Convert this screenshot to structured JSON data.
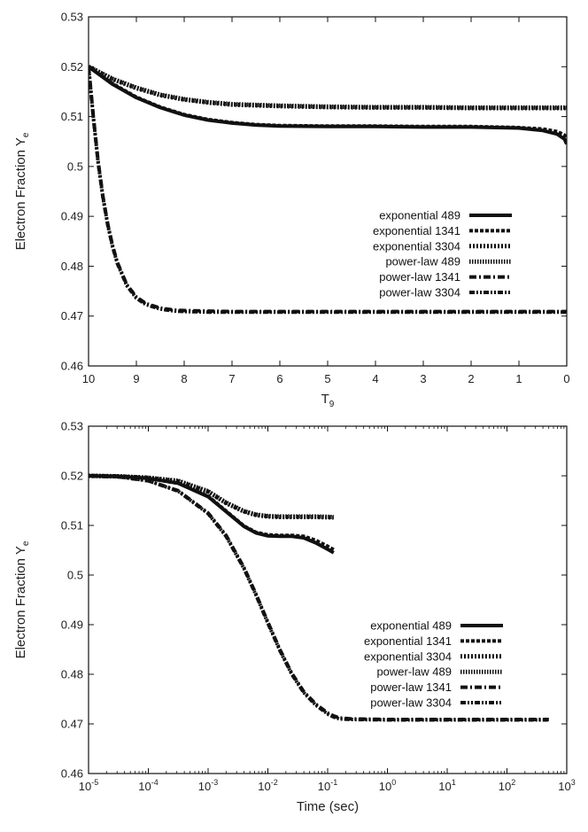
{
  "chart_data": [
    {
      "type": "line",
      "xlabel": "T",
      "xlabel_sub": "9",
      "ylabel": "Electron Fraction Y",
      "ylabel_sub": "e",
      "xlim": [
        10,
        0
      ],
      "ylim": [
        0.46,
        0.53
      ],
      "x_reversed": true,
      "x_scale": "linear",
      "xticks": [
        10,
        9,
        8,
        7,
        6,
        5,
        4,
        3,
        2,
        1,
        0
      ],
      "xtick_labels": [
        "10",
        "9",
        "8",
        "7",
        "6",
        "5",
        "4",
        "3",
        "2",
        "1",
        "0"
      ],
      "yticks": [
        0.46,
        0.47,
        0.48,
        0.49,
        0.5,
        0.51,
        0.52,
        0.53
      ],
      "ytick_labels": [
        "0.46",
        "0.47",
        "0.48",
        "0.49",
        "0.5",
        "0.51",
        "0.52",
        "0.53"
      ],
      "grid": false,
      "legend_position": "center-right",
      "series": [
        {
          "name": "exponential  489",
          "style": "solid",
          "x": [
            10,
            9.5,
            9,
            8.5,
            8,
            7.5,
            7,
            6.5,
            6,
            5,
            4,
            3,
            2,
            1,
            0.5,
            0.2,
            0.05,
            0
          ],
          "y": [
            0.52,
            0.5165,
            0.5138,
            0.5118,
            0.5103,
            0.5093,
            0.5087,
            0.5083,
            0.5081,
            0.508,
            0.508,
            0.5079,
            0.5079,
            0.5077,
            0.5072,
            0.5065,
            0.5055,
            0.5045
          ]
        },
        {
          "name": "exponential 1341",
          "style": "dashed",
          "x": [
            10,
            9.5,
            9,
            8.5,
            8,
            7.5,
            7,
            6.5,
            6,
            5,
            4,
            3,
            2,
            1,
            0.5,
            0.2,
            0.05,
            0
          ],
          "y": [
            0.52,
            0.5166,
            0.5139,
            0.5119,
            0.5104,
            0.5094,
            0.5088,
            0.5084,
            0.5082,
            0.5081,
            0.5081,
            0.508,
            0.508,
            0.5078,
            0.5075,
            0.507,
            0.5063,
            0.5057
          ]
        },
        {
          "name": "exponential 3304",
          "style": "dotted",
          "x": [
            10,
            9.5,
            9,
            8.5,
            8,
            7.5,
            7,
            6,
            5,
            4,
            3,
            2,
            1,
            0
          ],
          "y": [
            0.52,
            0.5175,
            0.5157,
            0.5143,
            0.5134,
            0.5128,
            0.5124,
            0.5121,
            0.5119,
            0.5118,
            0.5118,
            0.5117,
            0.5117,
            0.5117
          ]
        },
        {
          "name": "power-law    489",
          "style": "dotted-fine",
          "x": [
            10,
            9.5,
            9,
            8.5,
            8,
            7.5,
            7,
            6,
            5,
            4,
            3,
            2,
            1,
            0
          ],
          "y": [
            0.52,
            0.5176,
            0.5158,
            0.5144,
            0.5135,
            0.5129,
            0.5125,
            0.5122,
            0.512,
            0.5119,
            0.5119,
            0.5118,
            0.5118,
            0.5118
          ]
        },
        {
          "name": "power-law   1341",
          "style": "dash-dot",
          "x": [
            10,
            9.95,
            9.9,
            9.85,
            9.8,
            9.7,
            9.6,
            9.5,
            9.4,
            9.2,
            9,
            8.8,
            8.5,
            8.2,
            8,
            7.5,
            7,
            6,
            5,
            4,
            3,
            2,
            1,
            0
          ],
          "y": [
            0.52,
            0.515,
            0.51,
            0.5055,
            0.501,
            0.494,
            0.4885,
            0.4842,
            0.4808,
            0.4763,
            0.4738,
            0.4725,
            0.4716,
            0.4712,
            0.4711,
            0.471,
            0.4709,
            0.4709,
            0.4709,
            0.4709,
            0.4709,
            0.4709,
            0.4709,
            0.4709
          ]
        },
        {
          "name": "power-law   3304",
          "style": "dash-dot-dot",
          "x": [
            10,
            9.95,
            9.9,
            9.85,
            9.8,
            9.7,
            9.6,
            9.5,
            9.4,
            9.2,
            9,
            8.8,
            8.5,
            8.2,
            8,
            7.5,
            7,
            6,
            5,
            4,
            3,
            2,
            1,
            0
          ],
          "y": [
            0.52,
            0.5148,
            0.5098,
            0.5053,
            0.5008,
            0.4938,
            0.4883,
            0.484,
            0.4806,
            0.4761,
            0.4736,
            0.4723,
            0.4714,
            0.471,
            0.4709,
            0.4708,
            0.4708,
            0.4708,
            0.4708,
            0.4708,
            0.4708,
            0.4708,
            0.4708,
            0.4708
          ]
        }
      ]
    },
    {
      "type": "line",
      "xlabel": "Time (sec)",
      "ylabel": "Electron Fraction Y",
      "ylabel_sub": "e",
      "xlim": [
        -5,
        3
      ],
      "x_scale": "log10 (x values are exponents)",
      "ylim": [
        0.46,
        0.53
      ],
      "xticks": [
        -5,
        -4,
        -3,
        -2,
        -1,
        0,
        1,
        2,
        3
      ],
      "xtick_labels": [
        "-5",
        "-4",
        "-3",
        "-2",
        "-1",
        "0",
        "1",
        "2",
        "3"
      ],
      "xtick_base": "10",
      "yticks": [
        0.46,
        0.47,
        0.48,
        0.49,
        0.5,
        0.51,
        0.52,
        0.53
      ],
      "ytick_labels": [
        "0.46",
        "0.47",
        "0.48",
        "0.49",
        "0.5",
        "0.51",
        "0.52",
        "0.53"
      ],
      "grid": false,
      "legend_position": "lower-right",
      "series": [
        {
          "name": "exponential  489",
          "style": "solid",
          "x": [
            -5,
            -4.5,
            -4,
            -3.5,
            -3,
            -2.7,
            -2.4,
            -2.2,
            -2,
            -1.8,
            -1.6,
            -1.4,
            -1.2,
            -1,
            -0.9
          ],
          "y": [
            0.52,
            0.5199,
            0.5195,
            0.5185,
            0.5158,
            0.5128,
            0.5098,
            0.5085,
            0.5079,
            0.5078,
            0.5078,
            0.5075,
            0.5065,
            0.5052,
            0.5045
          ]
        },
        {
          "name": "exponential 1341",
          "style": "dashed",
          "x": [
            -5,
            -4.5,
            -4,
            -3.5,
            -3,
            -2.7,
            -2.4,
            -2.2,
            -2,
            -1.8,
            -1.6,
            -1.4,
            -1.2,
            -1,
            -0.9
          ],
          "y": [
            0.52,
            0.5199,
            0.5195,
            0.5185,
            0.5159,
            0.5129,
            0.5099,
            0.5086,
            0.5081,
            0.508,
            0.508,
            0.5078,
            0.507,
            0.5058,
            0.5051
          ]
        },
        {
          "name": "exponential 3304",
          "style": "dotted",
          "x": [
            -5,
            -4.5,
            -4,
            -3.5,
            -3,
            -2.7,
            -2.4,
            -2.2,
            -2,
            -1.8,
            -1.5,
            -1.2,
            -0.9
          ],
          "y": [
            0.52,
            0.5199,
            0.5196,
            0.5189,
            0.5168,
            0.5145,
            0.5128,
            0.5121,
            0.5118,
            0.5117,
            0.5117,
            0.5117,
            0.5116
          ]
        },
        {
          "name": "power-law    489",
          "style": "dotted-fine",
          "x": [
            -5,
            -4.5,
            -4,
            -3.5,
            -3,
            -2.7,
            -2.4,
            -2.2,
            -2,
            -1.8,
            -1.5,
            -1.2,
            -0.9
          ],
          "y": [
            0.52,
            0.5199,
            0.5196,
            0.519,
            0.5169,
            0.5146,
            0.5129,
            0.5122,
            0.5119,
            0.5118,
            0.5118,
            0.5118,
            0.5117
          ]
        },
        {
          "name": "power-law   1341",
          "style": "dash-dot",
          "x": [
            -5,
            -4.5,
            -4,
            -3.5,
            -3,
            -2.7,
            -2.4,
            -2.2,
            -2,
            -1.8,
            -1.6,
            -1.4,
            -1.2,
            -1,
            -0.9,
            -0.8,
            -0.6,
            0,
            1,
            2,
            2.7
          ],
          "y": [
            0.52,
            0.5198,
            0.519,
            0.517,
            0.5125,
            0.508,
            0.5015,
            0.4962,
            0.4905,
            0.485,
            0.4802,
            0.4765,
            0.474,
            0.4722,
            0.4716,
            0.4712,
            0.471,
            0.4709,
            0.4709,
            0.4709,
            0.4709
          ]
        },
        {
          "name": "power-law   3304",
          "style": "dash-dot-dot",
          "x": [
            -5,
            -4.5,
            -4,
            -3.5,
            -3,
            -2.7,
            -2.4,
            -2.2,
            -2,
            -1.8,
            -1.6,
            -1.4,
            -1.2,
            -1,
            -0.9,
            -0.8,
            -0.6,
            0,
            1,
            2,
            2.7
          ],
          "y": [
            0.52,
            0.5198,
            0.519,
            0.5169,
            0.5124,
            0.5078,
            0.5013,
            0.496,
            0.4903,
            0.4848,
            0.48,
            0.4763,
            0.4738,
            0.472,
            0.4714,
            0.471,
            0.4709,
            0.4708,
            0.4708,
            0.4708,
            0.4708
          ]
        }
      ]
    }
  ]
}
